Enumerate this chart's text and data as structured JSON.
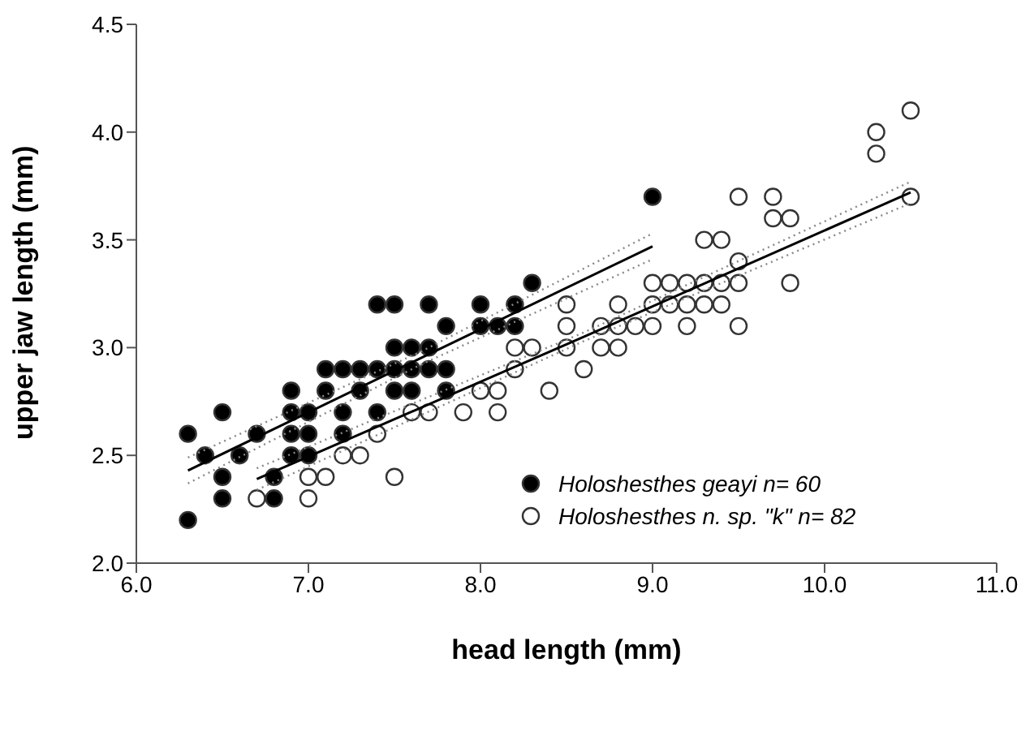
{
  "chart_data": {
    "type": "scatter",
    "xlabel": "head length (mm)",
    "ylabel": "upper jaw length (mm)",
    "xlim": [
      6,
      11
    ],
    "xticks": [
      {
        "value": 6,
        "label": "6.0"
      },
      {
        "value": 7,
        "label": "7.0"
      },
      {
        "value": 8,
        "label": "8.0"
      },
      {
        "value": 9,
        "label": "9.0"
      },
      {
        "value": 10,
        "label": "10.0"
      },
      {
        "value": 11,
        "label": "11.0"
      }
    ],
    "ylim": [
      2,
      4.5
    ],
    "yticks": [
      {
        "value": 2,
        "label": "2.0"
      },
      {
        "value": 2.5,
        "label": "2.5"
      },
      {
        "value": 3,
        "label": "3.0"
      },
      {
        "value": 3.5,
        "label": "3.5"
      },
      {
        "value": 4,
        "label": "4.0"
      },
      {
        "value": 4.5,
        "label": "4.5"
      }
    ],
    "legend": "bottom right",
    "marker": "circle",
    "series": [
      {
        "name": "Holoshesthes geayi n= 60",
        "color": "#000000",
        "x": [
          6.3,
          6.5,
          6.8,
          6.5,
          6.8,
          6.4,
          6.6,
          6.9,
          7.0,
          6.3,
          6.7,
          6.9,
          7.0,
          7.2,
          6.5,
          6.9,
          7.0,
          7.2,
          7.4,
          6.9,
          7.1,
          7.3,
          7.5,
          7.6,
          7.8,
          7.1,
          7.2,
          7.3,
          7.4,
          7.5,
          7.6,
          7.7,
          7.8,
          7.5,
          7.6,
          7.7,
          7.8,
          8.0,
          8.1,
          8.2,
          7.4,
          7.5,
          7.7,
          8.0,
          8.2,
          8.3,
          9.0
        ],
        "values": [
          2.2,
          2.3,
          2.3,
          2.4,
          2.4,
          2.5,
          2.5,
          2.5,
          2.5,
          2.6,
          2.6,
          2.6,
          2.6,
          2.6,
          2.7,
          2.7,
          2.7,
          2.7,
          2.7,
          2.8,
          2.8,
          2.8,
          2.8,
          2.8,
          2.8,
          2.9,
          2.9,
          2.9,
          2.9,
          2.9,
          2.9,
          2.9,
          2.9,
          3.0,
          3.0,
          3.0,
          3.1,
          3.1,
          3.1,
          3.1,
          3.2,
          3.2,
          3.2,
          3.2,
          3.2,
          3.3,
          3.7
        ]
      },
      {
        "name": "Holoshesthes n. sp. \"k\" n= 82",
        "color": "#ffffff",
        "x": [
          6.7,
          7.0,
          7.0,
          7.1,
          7.5,
          7.2,
          7.3,
          7.4,
          7.6,
          7.7,
          7.9,
          8.1,
          8.0,
          8.1,
          8.4,
          8.2,
          8.6,
          8.2,
          8.3,
          8.5,
          8.7,
          8.8,
          8.5,
          8.7,
          8.8,
          8.9,
          9.0,
          9.2,
          9.5,
          8.5,
          8.8,
          9.0,
          9.1,
          9.2,
          9.3,
          9.4,
          9.0,
          9.1,
          9.2,
          9.3,
          9.4,
          9.5,
          9.8,
          9.5,
          9.3,
          9.4,
          9.7,
          9.8,
          9.5,
          9.7,
          10.5,
          10.3,
          10.3,
          10.5
        ],
        "values": [
          2.3,
          2.3,
          2.4,
          2.4,
          2.4,
          2.5,
          2.5,
          2.6,
          2.7,
          2.7,
          2.7,
          2.7,
          2.8,
          2.8,
          2.8,
          2.9,
          2.9,
          3.0,
          3.0,
          3.0,
          3.0,
          3.0,
          3.1,
          3.1,
          3.1,
          3.1,
          3.1,
          3.1,
          3.1,
          3.2,
          3.2,
          3.2,
          3.2,
          3.2,
          3.2,
          3.2,
          3.3,
          3.3,
          3.3,
          3.3,
          3.3,
          3.3,
          3.3,
          3.4,
          3.5,
          3.5,
          3.6,
          3.6,
          3.7,
          3.7,
          3.7,
          3.9,
          4.0,
          4.1
        ]
      },
      {
        "type": "line",
        "marker": "none",
        "line_style": "solid",
        "color": "#000000",
        "x": [
          6.3,
          7.65,
          9.0
        ],
        "values": [
          2.43,
          2.95,
          3.47
        ]
      },
      {
        "type": "line",
        "marker": "none",
        "line_style": "dotted",
        "color": "#888888",
        "x": [
          6.3,
          7.65,
          9.0
        ],
        "values": [
          2.37,
          2.92,
          3.41
        ]
      },
      {
        "type": "line",
        "marker": "none",
        "line_style": "dotted",
        "color": "#888888",
        "x": [
          6.3,
          7.65,
          9.0
        ],
        "values": [
          2.49,
          2.98,
          3.53
        ]
      },
      {
        "type": "line",
        "marker": "none",
        "line_style": "solid",
        "color": "#000000",
        "x": [
          6.7,
          8.6,
          10.5
        ],
        "values": [
          2.39,
          3.05,
          3.72
        ]
      },
      {
        "type": "line",
        "marker": "none",
        "line_style": "dotted",
        "color": "#888888",
        "x": [
          6.7,
          8.6,
          10.5
        ],
        "values": [
          2.34,
          3.03,
          3.67
        ]
      },
      {
        "type": "line",
        "marker": "none",
        "line_style": "dotted",
        "color": "#888888",
        "x": [
          6.7,
          8.6,
          10.5
        ],
        "values": [
          2.44,
          3.07,
          3.77
        ]
      }
    ]
  }
}
